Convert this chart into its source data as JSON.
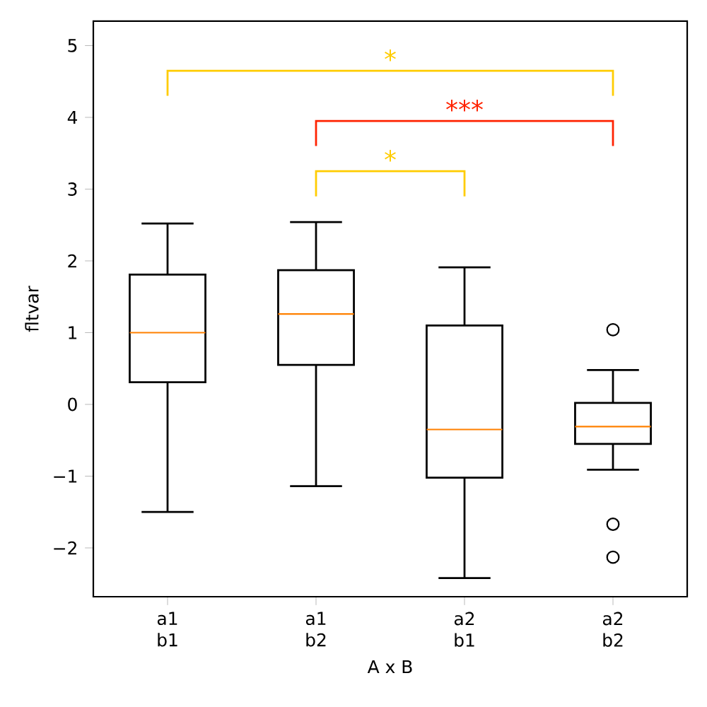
{
  "chart_data": {
    "type": "box",
    "xlabel": "A x B",
    "ylabel": "fltvar",
    "categories": [
      "a1 b1",
      "a1 b2",
      "a2 b1",
      "a2 b2"
    ],
    "boxes": [
      {
        "low": -1.5,
        "q1": 0.31,
        "median": 1.0,
        "q3": 1.81,
        "high": 2.52
      },
      {
        "low": -1.14,
        "q1": 0.55,
        "median": 1.26,
        "q3": 1.87,
        "high": 2.54
      },
      {
        "low": -2.42,
        "q1": -1.02,
        "median": -0.35,
        "q3": 1.1,
        "high": 1.91
      },
      {
        "low": -0.91,
        "q1": -0.55,
        "median": -0.31,
        "q3": 0.02,
        "high": 0.48,
        "outliers": [
          1.04,
          -1.67,
          -2.13
        ]
      }
    ],
    "ylim": [
      -2.68,
      5.34
    ],
    "yticks": [
      {
        "value": -2,
        "label": "−2"
      },
      {
        "value": -1,
        "label": "−1"
      },
      0,
      1,
      2,
      3,
      4,
      5
    ],
    "annotations": [
      "*",
      "***",
      "*"
    ]
  }
}
